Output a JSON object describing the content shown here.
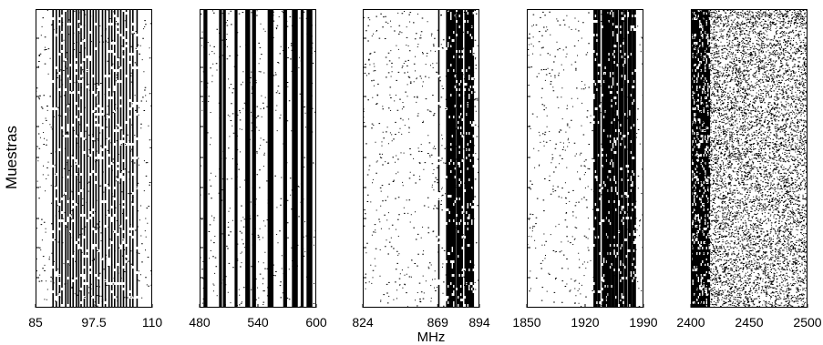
{
  "chart_data": {
    "type": "heatmap",
    "ylabel": "Muestras",
    "xlabel": "MHz",
    "panels": [
      {
        "xlim": [
          85,
          110
        ],
        "ticks": [
          85,
          97.5,
          110
        ],
        "tick_labels": [
          "85",
          "97.5",
          "110"
        ],
        "occupied_bands": [
          [
            88.6,
            88.8
          ],
          [
            89.3,
            89.4
          ],
          [
            90.0,
            90.1
          ],
          [
            90.5,
            90.7
          ],
          [
            91.3,
            91.4
          ],
          [
            91.8,
            92.0
          ],
          [
            92.3,
            92.4
          ],
          [
            92.9,
            93.1
          ],
          [
            93.6,
            93.8
          ],
          [
            94.1,
            94.2
          ],
          [
            94.6,
            94.8
          ],
          [
            95.3,
            95.4
          ],
          [
            95.9,
            96.1
          ],
          [
            96.6,
            96.8
          ],
          [
            97.2,
            97.4
          ],
          [
            97.8,
            97.9
          ],
          [
            98.4,
            98.6
          ],
          [
            99.2,
            99.3
          ],
          [
            99.8,
            100.0
          ],
          [
            100.6,
            100.7
          ],
          [
            101.2,
            101.4
          ],
          [
            101.8,
            101.9
          ],
          [
            102.5,
            102.7
          ],
          [
            103.1,
            103.2
          ],
          [
            103.7,
            103.8
          ],
          [
            104.3,
            104.5
          ],
          [
            105.1,
            105.2
          ],
          [
            105.7,
            105.9
          ],
          [
            106.6,
            106.7
          ]
        ],
        "occupied_density": 0.9,
        "background_density": 0.03
      },
      {
        "xlim": [
          480,
          600
        ],
        "ticks": [
          480,
          540,
          600
        ],
        "tick_labels": [
          "480",
          "540",
          "600"
        ],
        "occupied_bands": [
          [
            484,
            488
          ],
          [
            500,
            503
          ],
          [
            504,
            507
          ],
          [
            516,
            519
          ],
          [
            527,
            532
          ],
          [
            534,
            538
          ],
          [
            550,
            556
          ],
          [
            566,
            570
          ],
          [
            575,
            581
          ],
          [
            584,
            587
          ],
          [
            590,
            596
          ]
        ],
        "occupied_density": 0.98,
        "background_density": 0.03
      },
      {
        "xlim": [
          824,
          894
        ],
        "ticks": [
          824,
          869,
          894
        ],
        "tick_labels": [
          "824",
          "869",
          "894"
        ],
        "occupied_bands": [
          [
            869.2,
            869.6
          ],
          [
            874,
            876
          ],
          [
            876.5,
            879
          ],
          [
            880,
            884
          ],
          [
            885,
            890
          ]
        ],
        "occupied_density": 0.9,
        "background_density": 0.035
      },
      {
        "xlim": [
          1850,
          1990
        ],
        "ticks": [
          1850,
          1920,
          1990
        ],
        "tick_labels": [
          "1850",
          "1920",
          "1990"
        ],
        "occupied_bands": [
          [
            1930,
            1934
          ],
          [
            1935,
            1938
          ],
          [
            1940,
            1945
          ],
          [
            1946,
            1950
          ],
          [
            1951,
            1955
          ],
          [
            1956,
            1958
          ],
          [
            1960,
            1966
          ],
          [
            1967,
            1970
          ],
          [
            1971,
            1975
          ],
          [
            1976,
            1980
          ]
        ],
        "occupied_density": 0.9,
        "background_density": 0.03
      },
      {
        "xlim": [
          2400,
          2500
        ],
        "ticks": [
          2400,
          2450,
          2500
        ],
        "tick_labels": [
          "2400",
          "2450",
          "2500"
        ],
        "occupied_bands": [
          [
            2400,
            2416
          ]
        ],
        "occupied_density": 0.7,
        "background_density": 0.42
      }
    ]
  }
}
